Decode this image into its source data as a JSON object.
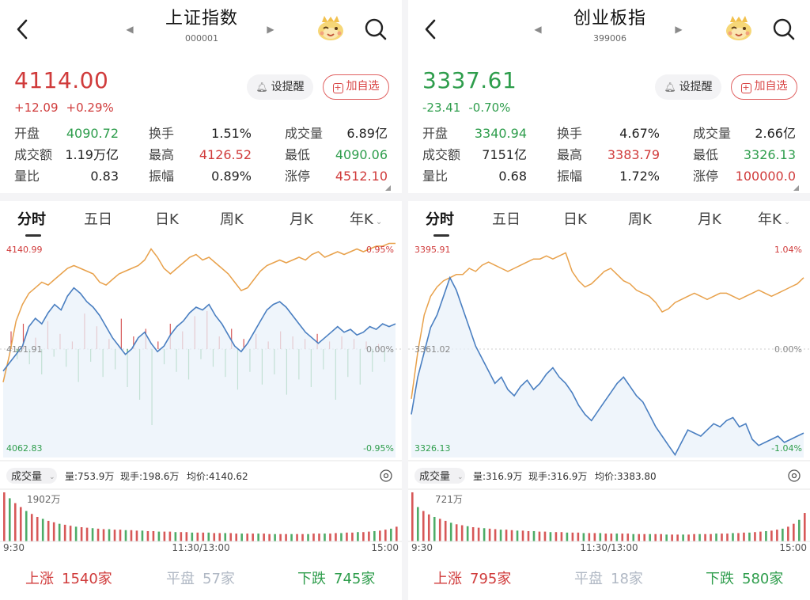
{
  "colors": {
    "up": "#d03b3b",
    "down": "#2e9d4c",
    "price_line": "#4a7fc1",
    "avg_line": "#e8a14b",
    "flat": "#b0b8c4"
  },
  "panels": [
    {
      "name": "上证指数",
      "code": "000001",
      "price": "4114.00",
      "direction": "up",
      "change": "+12.09",
      "change_pct": "+0.29%",
      "alert_label": "设提醒",
      "add_label": "加自选",
      "stats": [
        [
          {
            "label": "开盘",
            "value": "4090.72",
            "color": "down"
          },
          {
            "label": "换手",
            "value": "1.51%",
            "color": "neutral"
          },
          {
            "label": "成交量",
            "value": "6.89亿",
            "color": "neutral"
          }
        ],
        [
          {
            "label": "成交额",
            "value": "1.19万亿",
            "color": "neutral"
          },
          {
            "label": "最高",
            "value": "4126.52",
            "color": "up"
          },
          {
            "label": "最低",
            "value": "4090.06",
            "color": "down"
          }
        ],
        [
          {
            "label": "量比",
            "value": "0.83",
            "color": "neutral"
          },
          {
            "label": "振幅",
            "value": "0.89%",
            "color": "neutral"
          },
          {
            "label": "涨停",
            "value": "4512.10",
            "color": "up"
          }
        ]
      ],
      "tabs": [
        "分时",
        "五日",
        "日K",
        "周K",
        "月K",
        "年K"
      ],
      "chart": {
        "high": "4140.99",
        "low": "4062.83",
        "mid": "4101.91",
        "pct_high": "0.95%",
        "pct_mid": "0.00%",
        "pct_low": "-0.95%",
        "price_series": [
          4094,
          4097,
          4100,
          4103,
          4110,
          4113,
          4111,
          4115,
          4118,
          4116,
          4121,
          4124,
          4122,
          4119,
          4117,
          4114,
          4110,
          4106,
          4103,
          4100,
          4102,
          4106,
          4108,
          4104,
          4101,
          4103,
          4107,
          4110,
          4112,
          4115,
          4117,
          4116,
          4118,
          4114,
          4111,
          4107,
          4103,
          4101,
          4104,
          4108,
          4112,
          4116,
          4118,
          4119,
          4117,
          4114,
          4111,
          4108,
          4106,
          4104,
          4106,
          4108,
          4110,
          4108,
          4109,
          4107,
          4108,
          4110,
          4109,
          4111,
          4110,
          4111
        ],
        "avg_series": [
          4090,
          4100,
          4112,
          4118,
          4122,
          4124,
          4126,
          4125,
          4127,
          4129,
          4131,
          4132,
          4131,
          4130,
          4129,
          4126,
          4125,
          4127,
          4129,
          4130,
          4131,
          4132,
          4134,
          4138,
          4135,
          4131,
          4129,
          4131,
          4133,
          4135,
          4136,
          4134,
          4135,
          4133,
          4131,
          4129,
          4126,
          4123,
          4124,
          4127,
          4130,
          4132,
          4133,
          4134,
          4133,
          4134,
          4135,
          4134,
          4136,
          4137,
          4135,
          4136,
          4137,
          4136,
          4137,
          4138,
          4137,
          4138,
          4139,
          4139,
          4140,
          4140
        ],
        "breadth_bars": [
          14,
          -8,
          20,
          -12,
          9,
          -20,
          22,
          -6,
          12,
          -14,
          6,
          -26,
          28,
          -10,
          18,
          -22,
          8,
          -16,
          24,
          -30,
          10,
          -40,
          16,
          -60,
          6,
          -12,
          20,
          -18,
          14,
          -24,
          26,
          -8,
          30,
          -14,
          10,
          -22,
          16,
          -32,
          8,
          -18,
          12,
          -28,
          6,
          -20,
          14,
          -36,
          10,
          -24,
          8,
          -30,
          12,
          -16,
          6,
          -40,
          10,
          -22,
          8,
          -28,
          6,
          -18,
          4,
          -10
        ],
        "vol_label": "成交量",
        "vol_amount": "量:753.9万",
        "vol_hand": "现手:198.6万",
        "vol_avg": "均价:4140.62",
        "vol_max": "1902万",
        "vol_bars": [
          100,
          88,
          78,
          70,
          62,
          56,
          50,
          46,
          42,
          39,
          36,
          34,
          32,
          30,
          29,
          28,
          27,
          26,
          25,
          25,
          24,
          24,
          23,
          23,
          22,
          22,
          21,
          21,
          20,
          20,
          20,
          19,
          19,
          19,
          18,
          18,
          18,
          18,
          17,
          17,
          17,
          17,
          16,
          16,
          16,
          16,
          16,
          16,
          15,
          15,
          15,
          15,
          15,
          15,
          15,
          15,
          16,
          16,
          16,
          16,
          17,
          17,
          18,
          18,
          19,
          19,
          20,
          21,
          22,
          24,
          26,
          30
        ],
        "time_start": "9:30",
        "time_mid": "11:30/13:00",
        "time_end": "15:00"
      },
      "breadth": {
        "up_label": "上涨",
        "up_count": "1540家",
        "flat_label": "平盘",
        "flat_count": "57家",
        "down_label": "下跌",
        "down_count": "745家"
      }
    },
    {
      "name": "创业板指",
      "code": "399006",
      "price": "3337.61",
      "direction": "down",
      "change": "-23.41",
      "change_pct": "-0.70%",
      "alert_label": "设提醒",
      "add_label": "加自选",
      "stats": [
        [
          {
            "label": "开盘",
            "value": "3340.94",
            "color": "down"
          },
          {
            "label": "换手",
            "value": "4.67%",
            "color": "neutral"
          },
          {
            "label": "成交量",
            "value": "2.66亿",
            "color": "neutral"
          }
        ],
        [
          {
            "label": "成交额",
            "value": "7151亿",
            "color": "neutral"
          },
          {
            "label": "最高",
            "value": "3383.79",
            "color": "up"
          },
          {
            "label": "最低",
            "value": "3326.13",
            "color": "down"
          }
        ],
        [
          {
            "label": "量比",
            "value": "0.68",
            "color": "neutral"
          },
          {
            "label": "振幅",
            "value": "1.72%",
            "color": "neutral"
          },
          {
            "label": "涨停",
            "value": "100000.0",
            "color": "up"
          }
        ]
      ],
      "tabs": [
        "分时",
        "五日",
        "日K",
        "周K",
        "月K",
        "年K"
      ],
      "chart": {
        "high": "3395.91",
        "low": "3326.13",
        "mid": "3361.02",
        "pct_high": "1.04%",
        "pct_mid": "0.00%",
        "pct_low": "-1.04%",
        "price_series": [
          3340,
          3352,
          3360,
          3368,
          3372,
          3378,
          3384,
          3380,
          3374,
          3368,
          3362,
          3358,
          3354,
          3350,
          3352,
          3348,
          3346,
          3349,
          3351,
          3348,
          3350,
          3353,
          3355,
          3352,
          3350,
          3347,
          3343,
          3340,
          3338,
          3341,
          3344,
          3347,
          3350,
          3352,
          3349,
          3346,
          3344,
          3340,
          3336,
          3333,
          3330,
          3327,
          3331,
          3335,
          3334,
          3333,
          3335,
          3337,
          3336,
          3338,
          3339,
          3336,
          3337,
          3332,
          3330,
          3331,
          3332,
          3333,
          3331,
          3332,
          3333,
          3334
        ],
        "avg_series": [
          3345,
          3360,
          3372,
          3378,
          3381,
          3383,
          3384,
          3385,
          3385,
          3387,
          3386,
          3388,
          3389,
          3388,
          3387,
          3386,
          3387,
          3388,
          3389,
          3390,
          3390,
          3391,
          3390,
          3391,
          3392,
          3386,
          3383,
          3381,
          3382,
          3384,
          3386,
          3387,
          3385,
          3383,
          3382,
          3380,
          3379,
          3378,
          3376,
          3373,
          3374,
          3376,
          3377,
          3378,
          3379,
          3378,
          3377,
          3378,
          3379,
          3379,
          3378,
          3377,
          3378,
          3379,
          3380,
          3379,
          3378,
          3379,
          3380,
          3381,
          3382,
          3384
        ],
        "breadth_bars": [],
        "vol_label": "成交量",
        "vol_amount": "量:316.9万",
        "vol_hand": "现手:316.9万",
        "vol_avg": "均价:3383.80",
        "vol_max": "721万",
        "vol_bars": [
          100,
          70,
          62,
          55,
          50,
          46,
          42,
          38,
          35,
          33,
          31,
          29,
          28,
          27,
          26,
          25,
          24,
          24,
          23,
          22,
          22,
          21,
          21,
          20,
          20,
          19,
          19,
          19,
          18,
          18,
          18,
          17,
          17,
          17,
          17,
          16,
          16,
          16,
          16,
          16,
          15,
          15,
          15,
          15,
          15,
          15,
          14,
          14,
          14,
          14,
          14,
          15,
          15,
          15,
          15,
          16,
          16,
          16,
          17,
          17,
          18,
          18,
          19,
          20,
          21,
          22,
          24,
          26,
          30,
          36,
          44,
          58
        ],
        "time_start": "9:30",
        "time_mid": "11:30/13:00",
        "time_end": "15:00"
      },
      "breadth": {
        "up_label": "上涨",
        "up_count": "795家",
        "flat_label": "平盘",
        "flat_count": "18家",
        "down_label": "下跌",
        "down_count": "580家"
      }
    }
  ]
}
